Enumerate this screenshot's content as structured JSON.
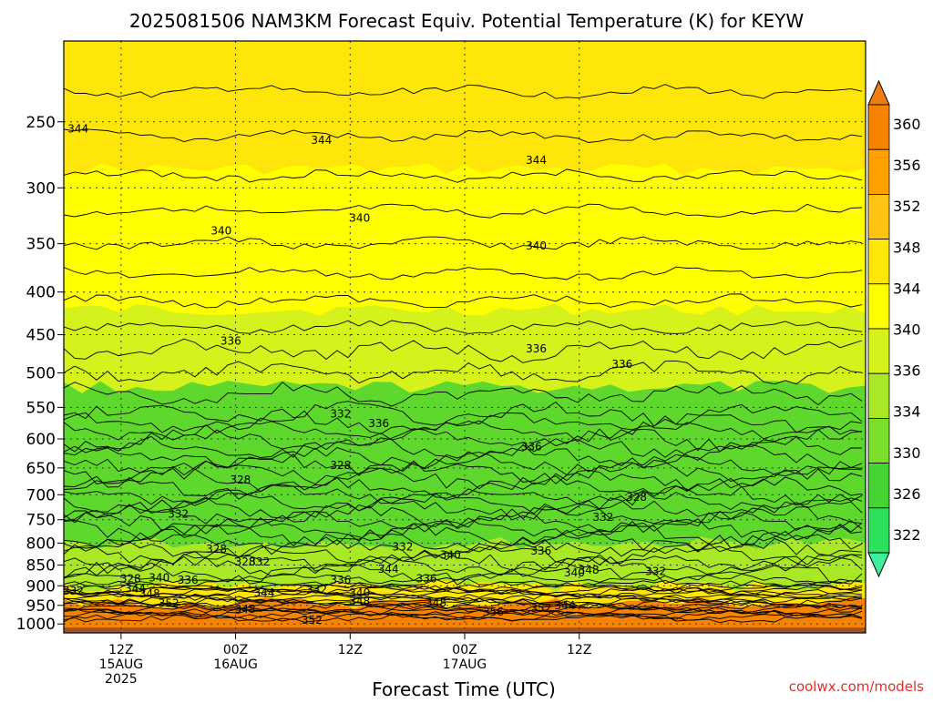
{
  "chart_data": {
    "type": "heatmap",
    "title": "2025081506 NAM3KM Forecast Equiv. Potential Temperature (K) for KEYW",
    "xlabel": "Forecast Time (UTC)",
    "ylabel": "",
    "y_axis": {
      "scale": "log-pressure",
      "inverted": true,
      "range": [
        200,
        1025
      ],
      "ticks": [
        250,
        300,
        350,
        400,
        450,
        500,
        550,
        600,
        650,
        700,
        750,
        800,
        850,
        900,
        950,
        1000
      ],
      "tick_labels": [
        "250",
        "300",
        "350",
        "400",
        "450",
        "500",
        "550",
        "600",
        "650",
        "700",
        "750",
        "800",
        "850",
        "900",
        "950",
        "1000"
      ]
    },
    "x_axis": {
      "unit": "forecast hour",
      "range": [
        6,
        90
      ],
      "ticks": [
        {
          "hour": 12,
          "lines": [
            "12Z",
            "15AUG",
            "2025"
          ]
        },
        {
          "hour": 24,
          "lines": [
            "00Z",
            "16AUG"
          ]
        },
        {
          "hour": 36,
          "lines": [
            "12Z"
          ]
        },
        {
          "hour": 48,
          "lines": [
            "00Z",
            "17AUG"
          ]
        },
        {
          "hour": 60,
          "lines": [
            "12Z"
          ]
        }
      ]
    },
    "grid": true,
    "colorbar": {
      "position": "right",
      "levels": [
        322,
        326,
        330,
        334,
        336,
        340,
        344,
        348,
        352,
        356,
        360
      ],
      "tick_labels": [
        "322",
        "326",
        "330",
        "334",
        "336",
        "340",
        "344",
        "348",
        "352",
        "356",
        "360"
      ],
      "colors": [
        "#3ef09a",
        "#2fe05a",
        "#46d433",
        "#7cde2c",
        "#a8e826",
        "#d6f21c",
        "#ffff00",
        "#ffe60a",
        "#ffc314",
        "#ffa000",
        "#f78400",
        "#ef7d10"
      ],
      "extend": "both"
    },
    "field_layers": [
      {
        "pressure_top": 200,
        "pressure_bottom": 285,
        "theta_e": 346,
        "color": "#ffe60a"
      },
      {
        "pressure_top": 285,
        "pressure_bottom": 420,
        "theta_e": 341,
        "color": "#ffff00"
      },
      {
        "pressure_top": 420,
        "pressure_bottom": 520,
        "theta_e": 337,
        "color": "#d6f21c"
      },
      {
        "pressure_top": 520,
        "pressure_bottom": 800,
        "theta_e": 330,
        "color": "#5fd82e"
      },
      {
        "pressure_top": 800,
        "pressure_bottom": 900,
        "theta_e": 334,
        "color": "#a8e826"
      },
      {
        "pressure_top": 900,
        "pressure_bottom": 945,
        "theta_e": 344,
        "color": "#ffe60a"
      },
      {
        "pressure_top": 945,
        "pressure_bottom": 1025,
        "theta_e": 352,
        "color": "#f78400"
      }
    ],
    "contour_labels": [
      {
        "text": "344",
        "hour": 7.5,
        "pressure": 255
      },
      {
        "text": "344",
        "hour": 33,
        "pressure": 263
      },
      {
        "text": "344",
        "hour": 55.5,
        "pressure": 278
      },
      {
        "text": "340",
        "hour": 22.5,
        "pressure": 338
      },
      {
        "text": "340",
        "hour": 37,
        "pressure": 326
      },
      {
        "text": "340",
        "hour": 55.5,
        "pressure": 352
      },
      {
        "text": "336",
        "hour": 23.5,
        "pressure": 458
      },
      {
        "text": "336",
        "hour": 55.5,
        "pressure": 468
      },
      {
        "text": "336",
        "hour": 64.5,
        "pressure": 488
      },
      {
        "text": "336",
        "hour": 39,
        "pressure": 575
      },
      {
        "text": "336",
        "hour": 55,
        "pressure": 613
      },
      {
        "text": "332",
        "hour": 35,
        "pressure": 560
      },
      {
        "text": "328",
        "hour": 24.5,
        "pressure": 672
      },
      {
        "text": "328",
        "hour": 35,
        "pressure": 645
      },
      {
        "text": "328",
        "hour": 66,
        "pressure": 705
      },
      {
        "text": "332",
        "hour": 18,
        "pressure": 738
      },
      {
        "text": "332",
        "hour": 62.5,
        "pressure": 745
      },
      {
        "text": "332",
        "hour": 41.5,
        "pressure": 808
      },
      {
        "text": "332",
        "hour": 26.5,
        "pressure": 842
      },
      {
        "text": "332",
        "hour": 68,
        "pressure": 865
      },
      {
        "text": "328",
        "hour": 22,
        "pressure": 813
      },
      {
        "text": "328",
        "hour": 25,
        "pressure": 842
      },
      {
        "text": "328",
        "hour": 13,
        "pressure": 883
      },
      {
        "text": "340",
        "hour": 16,
        "pressure": 880
      },
      {
        "text": "340",
        "hour": 46.5,
        "pressure": 827
      },
      {
        "text": "344",
        "hour": 40,
        "pressure": 860
      },
      {
        "text": "336",
        "hour": 19,
        "pressure": 886
      },
      {
        "text": "336",
        "hour": 35,
        "pressure": 886
      },
      {
        "text": "336",
        "hour": 44,
        "pressure": 883
      },
      {
        "text": "336",
        "hour": 56,
        "pressure": 817
      },
      {
        "text": "348",
        "hour": 61,
        "pressure": 862
      },
      {
        "text": "340",
        "hour": 59.5,
        "pressure": 868
      },
      {
        "text": "332",
        "hour": 7,
        "pressure": 913
      },
      {
        "text": "344",
        "hour": 13.5,
        "pressure": 907
      },
      {
        "text": "348",
        "hour": 15,
        "pressure": 920
      },
      {
        "text": "352",
        "hour": 17,
        "pressure": 945
      },
      {
        "text": "344",
        "hour": 27,
        "pressure": 918
      },
      {
        "text": "332",
        "hour": 32.5,
        "pressure": 910
      },
      {
        "text": "348",
        "hour": 25,
        "pressure": 960
      },
      {
        "text": "340",
        "hour": 37,
        "pressure": 918
      },
      {
        "text": "348",
        "hour": 37,
        "pressure": 940
      },
      {
        "text": "348",
        "hour": 45,
        "pressure": 943
      },
      {
        "text": "352",
        "hour": 32,
        "pressure": 990
      },
      {
        "text": "356",
        "hour": 51,
        "pressure": 967
      },
      {
        "text": "352",
        "hour": 56,
        "pressure": 958
      },
      {
        "text": "344",
        "hour": 58.5,
        "pressure": 950
      }
    ],
    "credit": "coolwx.com/models"
  }
}
